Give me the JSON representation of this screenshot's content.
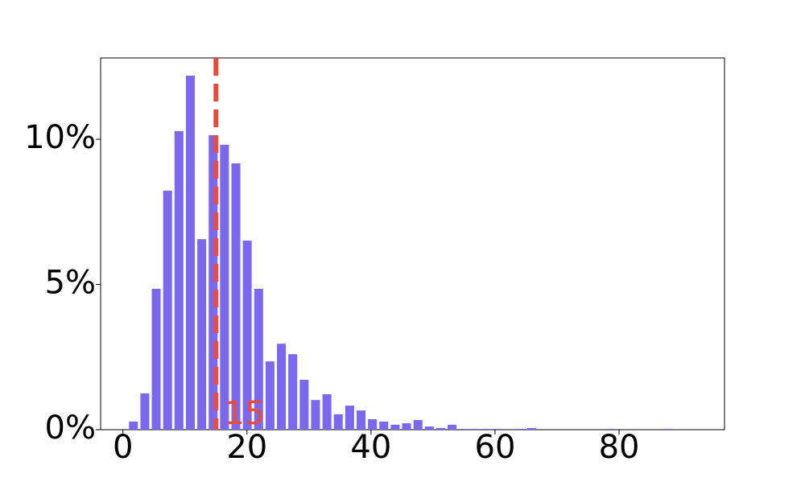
{
  "chart_data": {
    "type": "bar",
    "x": [
      1.69,
      3.53,
      5.36,
      7.2,
      9.03,
      10.87,
      12.7,
      14.54,
      16.37,
      18.21,
      20.04,
      21.88,
      23.71,
      25.55,
      27.38,
      29.22,
      31.05,
      32.89,
      34.72,
      36.56,
      38.39,
      40.23,
      42.06,
      43.9,
      45.73,
      47.57,
      49.4,
      51.24,
      53.07,
      54.91,
      56.74,
      58.58,
      60.41,
      62.25,
      64.08,
      65.92,
      67.75,
      69.59,
      71.42,
      73.26,
      75.09,
      76.93,
      78.76,
      80.6,
      82.43,
      84.27,
      86.1,
      87.94
    ],
    "values": [
      0.28,
      1.25,
      4.85,
      8.23,
      10.28,
      12.19,
      6.56,
      10.14,
      9.81,
      9.17,
      6.51,
      4.85,
      2.35,
      2.96,
      2.6,
      1.72,
      1.02,
      1.22,
      0.53,
      0.83,
      0.66,
      0.36,
      0.28,
      0.17,
      0.22,
      0.33,
      0.11,
      0.06,
      0.17,
      0.03,
      0.03,
      0.03,
      0.03,
      0,
      0.03,
      0.06,
      0,
      0,
      0,
      0,
      0,
      0,
      0.03,
      0,
      0,
      0,
      0,
      0.03
    ],
    "color": "#7b68ee",
    "xlim": [
      -3.6,
      97
    ],
    "xticks": [
      0,
      20,
      40,
      60,
      80
    ],
    "ylim": [
      0,
      12.8
    ],
    "yticks": [
      {
        "value": 0,
        "label": "0%"
      },
      {
        "value": 5,
        "label": "5%"
      },
      {
        "value": 10,
        "label": "10%"
      }
    ],
    "vline": {
      "value": 15,
      "color": "#e74c3c"
    }
  }
}
